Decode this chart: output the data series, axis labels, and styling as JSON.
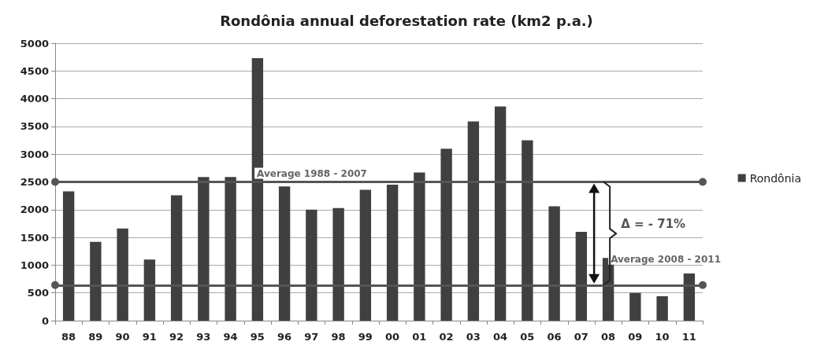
{
  "chart_data": {
    "type": "bar",
    "title": "Rondônia annual deforestation rate (km2 p.a.)",
    "categories": [
      "88",
      "89",
      "90",
      "91",
      "92",
      "93",
      "94",
      "95",
      "96",
      "97",
      "98",
      "99",
      "00",
      "01",
      "02",
      "03",
      "04",
      "05",
      "06",
      "07",
      "08",
      "09",
      "10",
      "11"
    ],
    "series": [
      {
        "name": "Rondônia",
        "color": "#404040",
        "values": [
          2330,
          1420,
          1660,
          1100,
          2260,
          2590,
          2590,
          4730,
          2420,
          2000,
          2030,
          2360,
          2450,
          2670,
          3100,
          3590,
          3860,
          3250,
          2060,
          1600,
          1130,
          500,
          440,
          850
        ]
      }
    ],
    "ylim": [
      0,
      5000
    ],
    "yticks": [
      0,
      500,
      1000,
      1500,
      2000,
      2500,
      3000,
      3500,
      4000,
      4500,
      5000
    ],
    "grid": "y",
    "legend": "right",
    "ref_lines": [
      {
        "axis": "y",
        "value": 2500,
        "label": "Average 1988 - 2007",
        "color": "#555555"
      },
      {
        "axis": "y",
        "value": 640,
        "label": "Average 2008 - 2011",
        "color": "#555555"
      }
    ],
    "annotations": [
      "Δ = - 71%"
    ]
  }
}
